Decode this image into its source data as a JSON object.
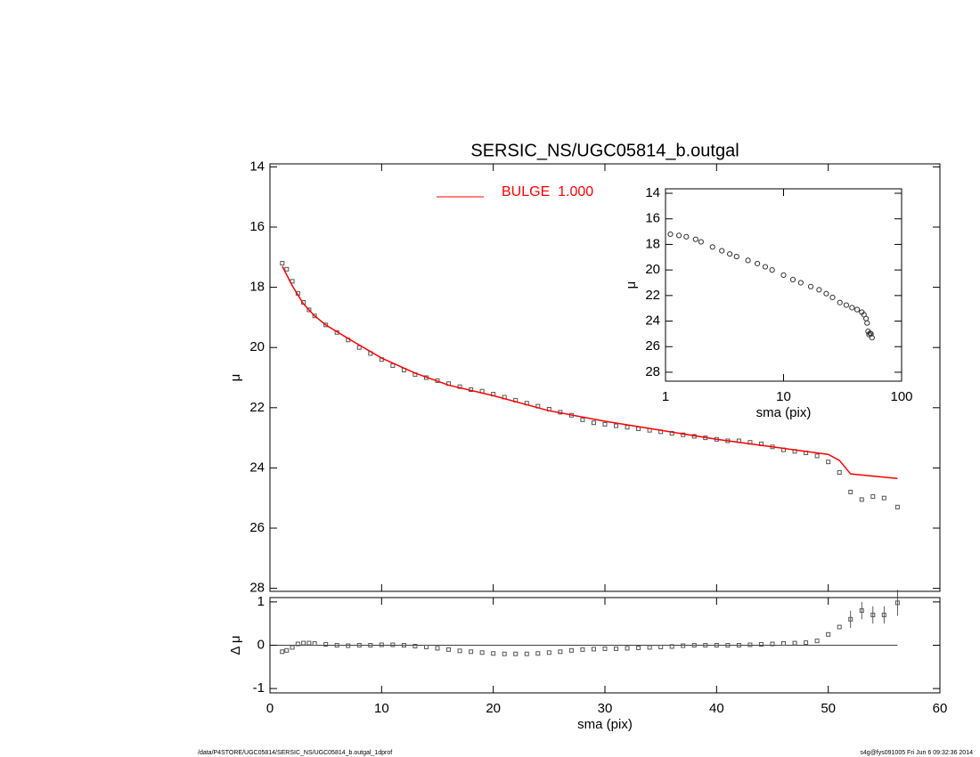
{
  "footer": {
    "left": "/data/P4STORE/UGC05814/SERSIC_NS/UGC05814_b.outgal_1dprof",
    "right": "s4g@fys091005  Fri Jun  6 09:32:36 2014"
  },
  "chart_data": [
    {
      "type": "line",
      "title": "SERSIC_NS/UGC05814_b.outgal",
      "ylabel": "μ",
      "xlim": [
        0,
        60
      ],
      "ylim": [
        13.9,
        28.1
      ],
      "y_inverted": true,
      "yticks": [
        14,
        16,
        18,
        20,
        22,
        24,
        26,
        28
      ],
      "series": [
        {
          "marker": "square",
          "color": "#555555",
          "x": [
            1.1,
            1.5,
            2,
            2.5,
            3,
            3.5,
            4,
            5,
            6,
            7,
            8,
            9,
            10,
            11,
            12,
            13,
            14,
            15,
            16,
            17,
            18,
            19,
            20,
            21,
            22,
            23,
            24,
            25,
            26,
            27,
            28,
            29,
            30,
            31,
            32,
            33,
            34,
            35,
            36,
            37,
            38,
            39,
            40,
            41,
            42,
            43,
            44,
            45,
            46,
            47,
            48,
            49,
            50,
            51,
            52,
            53,
            54,
            55,
            56.2
          ],
          "values": [
            17.2,
            17.4,
            17.8,
            18.2,
            18.5,
            18.75,
            18.95,
            19.25,
            19.5,
            19.75,
            20.0,
            20.2,
            20.4,
            20.6,
            20.75,
            20.9,
            21.0,
            21.1,
            21.2,
            21.3,
            21.4,
            21.45,
            21.55,
            21.65,
            21.75,
            21.85,
            21.95,
            22.05,
            22.15,
            22.25,
            22.4,
            22.5,
            22.55,
            22.6,
            22.65,
            22.7,
            22.75,
            22.8,
            22.85,
            22.9,
            22.95,
            23.0,
            23.05,
            23.1,
            23.1,
            23.15,
            23.2,
            23.3,
            23.4,
            23.45,
            23.5,
            23.6,
            23.8,
            24.15,
            24.8,
            25.05,
            24.95,
            25.0,
            25.3
          ]
        },
        {
          "name": "BULGE  1.000",
          "color": "#ff0000",
          "x": [
            1.1,
            2,
            3,
            4,
            5,
            7,
            10,
            13,
            16,
            20,
            25,
            30,
            35,
            40,
            45,
            48,
            50,
            51,
            52,
            56.2
          ],
          "values": [
            17.3,
            17.95,
            18.55,
            18.95,
            19.25,
            19.7,
            20.35,
            20.85,
            21.25,
            21.6,
            22.1,
            22.45,
            22.75,
            23.05,
            23.3,
            23.45,
            23.55,
            23.75,
            24.2,
            24.35
          ]
        }
      ]
    },
    {
      "type": "scatter",
      "xlabel": "sma (pix)",
      "ylabel": "Δ μ",
      "xlim": [
        0,
        60
      ],
      "xticks": [
        0,
        10,
        20,
        30,
        40,
        50,
        60
      ],
      "ylim": [
        -1.1,
        1.1
      ],
      "yticks": [
        -1,
        0,
        1
      ],
      "hline": 0,
      "series": [
        {
          "marker": "square",
          "color": "#555555",
          "x": [
            1.1,
            1.5,
            2,
            2.5,
            3,
            3.5,
            4,
            5,
            6,
            7,
            8,
            9,
            10,
            11,
            12,
            13,
            14,
            15,
            16,
            17,
            18,
            19,
            20,
            21,
            22,
            23,
            24,
            25,
            26,
            27,
            28,
            29,
            30,
            31,
            32,
            33,
            34,
            35,
            36,
            37,
            38,
            39,
            40,
            41,
            42,
            43,
            44,
            45,
            46,
            47,
            48,
            49,
            50,
            51,
            52,
            53,
            54,
            55,
            56.2
          ],
          "values": [
            -0.15,
            -0.12,
            -0.05,
            0.03,
            0.05,
            0.05,
            0.04,
            0.02,
            0.0,
            -0.01,
            0.0,
            0.0,
            0.01,
            0.01,
            0.0,
            -0.02,
            -0.04,
            -0.07,
            -0.1,
            -0.13,
            -0.15,
            -0.17,
            -0.19,
            -0.2,
            -0.2,
            -0.2,
            -0.19,
            -0.17,
            -0.15,
            -0.12,
            -0.1,
            -0.09,
            -0.08,
            -0.08,
            -0.07,
            -0.06,
            -0.05,
            -0.04,
            -0.03,
            -0.01,
            0.0,
            0.0,
            0.0,
            0.0,
            0.0,
            0.01,
            0.02,
            0.03,
            0.04,
            0.05,
            0.06,
            0.1,
            0.25,
            0.42,
            0.6,
            0.8,
            0.7,
            0.7,
            0.98
          ],
          "errors": [
            null,
            null,
            null,
            null,
            null,
            null,
            null,
            null,
            null,
            null,
            null,
            null,
            null,
            null,
            null,
            null,
            null,
            null,
            null,
            null,
            null,
            null,
            null,
            null,
            null,
            null,
            null,
            null,
            null,
            null,
            null,
            null,
            null,
            null,
            null,
            null,
            null,
            null,
            null,
            null,
            null,
            null,
            null,
            null,
            null,
            null,
            null,
            null,
            null,
            null,
            null,
            null,
            null,
            null,
            0.2,
            0.2,
            0.2,
            0.2,
            0.3
          ]
        }
      ]
    },
    {
      "type": "scatter",
      "xlabel": "sma (pix)",
      "ylabel": "μ",
      "xscale": "log",
      "xlim": [
        1,
        100
      ],
      "xticks": [
        1,
        10,
        100
      ],
      "ylim": [
        13.65,
        28.7
      ],
      "y_inverted": true,
      "yticks": [
        14,
        16,
        18,
        20,
        22,
        24,
        26,
        28
      ],
      "series": [
        {
          "marker": "circle",
          "color": "#333333",
          "x": [
            1.1,
            1.3,
            1.5,
            1.8,
            2,
            2.5,
            3,
            3.5,
            4,
            5,
            6,
            7,
            8,
            10,
            12,
            14,
            17,
            20,
            23,
            26,
            30,
            34,
            38,
            42,
            46,
            48,
            50,
            51,
            52,
            53,
            54,
            55,
            56.2
          ],
          "values": [
            17.2,
            17.3,
            17.4,
            17.6,
            17.8,
            18.2,
            18.5,
            18.75,
            18.95,
            19.25,
            19.5,
            19.75,
            20.0,
            20.4,
            20.75,
            21.0,
            21.3,
            21.55,
            21.85,
            22.15,
            22.55,
            22.75,
            22.95,
            23.1,
            23.3,
            23.5,
            23.8,
            24.15,
            24.8,
            25.05,
            24.95,
            25.0,
            25.3
          ]
        }
      ]
    }
  ]
}
